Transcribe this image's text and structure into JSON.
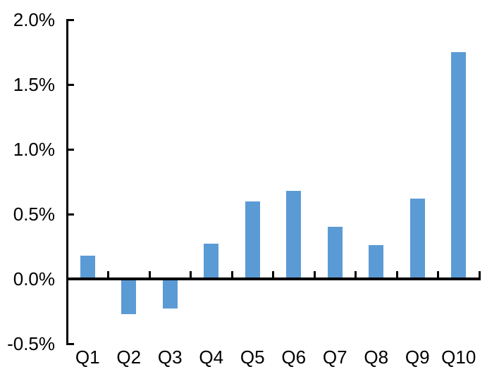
{
  "chart_data": {
    "type": "bar",
    "title": "",
    "xlabel": "",
    "ylabel": "",
    "unit": "%",
    "categories": [
      "Q1",
      "Q2",
      "Q3",
      "Q4",
      "Q5",
      "Q6",
      "Q7",
      "Q8",
      "Q9",
      "Q10"
    ],
    "values": [
      0.18,
      -0.27,
      -0.23,
      0.27,
      0.6,
      0.68,
      0.4,
      0.26,
      0.62,
      1.75
    ],
    "ylim": [
      -0.5,
      2.0
    ],
    "ytick_step": 0.5,
    "ytick_labels": [
      "2.0%",
      "1.5%",
      "1.0%",
      "0.5%",
      "0.0%",
      "-0.5%"
    ],
    "ytick_values": [
      2.0,
      1.5,
      1.0,
      0.5,
      0.0,
      -0.5
    ],
    "grid": false,
    "legend": null,
    "bar_color": "#5B9BD5",
    "axis_color": "#000000",
    "text_color": "#000000",
    "background_color": "#FFFFFF"
  }
}
